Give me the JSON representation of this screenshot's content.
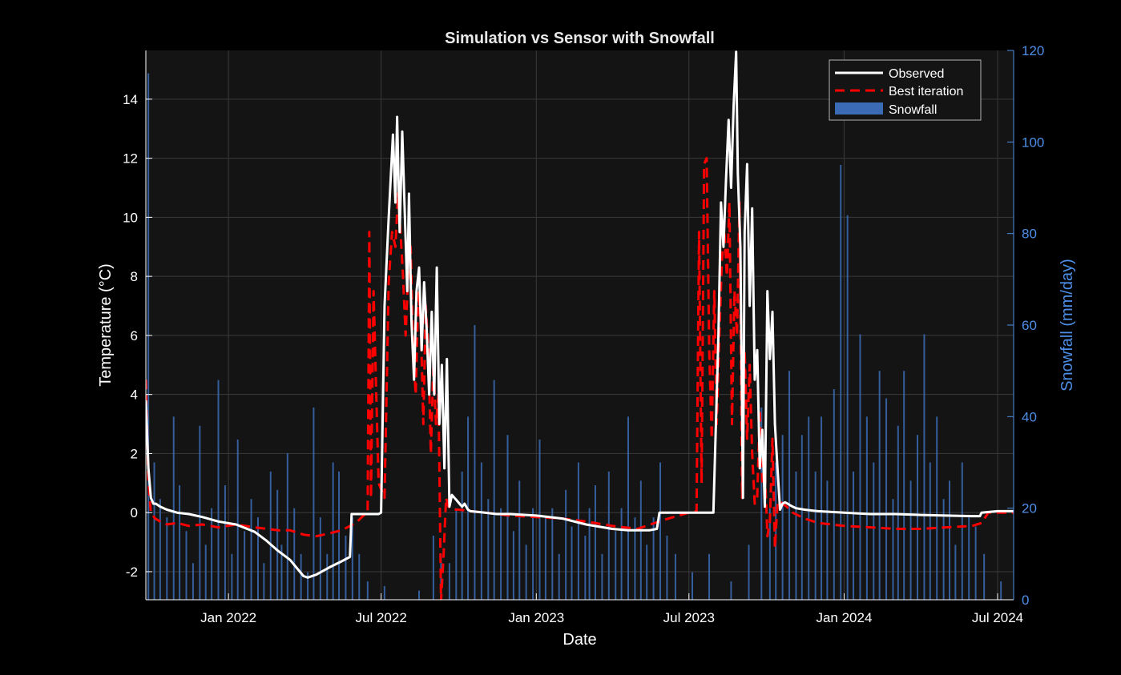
{
  "chart_data": {
    "type": "line",
    "title": "Simulation vs Sensor with Snowfall",
    "xlabel": "Date",
    "ylabel": "Temperature (°C)",
    "ylabel_right": "Snowfall (mm/day)",
    "xlim": [
      "2021-09-25",
      "2024-07-20"
    ],
    "ylim": [
      -2.95,
      15.65
    ],
    "ylim_right": [
      0,
      120
    ],
    "x_ticks": [
      "2022-01-01",
      "2022-07-01",
      "2023-01-01",
      "2023-07-01",
      "2024-01-01",
      "2024-07-01"
    ],
    "x_tick_labels": [
      "Jan 2022",
      "Jul 2022",
      "Jan 2023",
      "Jul 2023",
      "Jan 2024",
      "Jul 2024"
    ],
    "y_ticks": [
      -2,
      0,
      2,
      4,
      6,
      8,
      10,
      12,
      14
    ],
    "y_tick_labels": [
      "-2",
      "0",
      "2",
      "4",
      "6",
      "8",
      "10",
      "12",
      "14"
    ],
    "y_right_ticks": [
      0,
      20,
      40,
      60,
      80,
      100,
      120
    ],
    "y_right_tick_labels": [
      "0",
      "20",
      "40",
      "60",
      "80",
      "100",
      "120"
    ],
    "grid": true,
    "legend_position": "top-right",
    "legend": [
      "Observed",
      "Best iteration",
      "Snowfall"
    ],
    "colors": {
      "background": "#000000",
      "plot_background": "#141414",
      "grid": "#3a3a3a",
      "observed": "#ffffff",
      "best_iteration": "#ff0000",
      "snowfall": "#3a6bb4",
      "right_axis": "#4d8fe8"
    },
    "series": [
      {
        "name": "Observed",
        "style": "solid",
        "x": [
          "2021-09-25",
          "2021-09-28",
          "2021-10-01",
          "2021-10-04",
          "2021-10-07",
          "2021-10-12",
          "2021-10-20",
          "2021-11-01",
          "2021-11-15",
          "2021-12-01",
          "2021-12-20",
          "2022-01-10",
          "2022-02-01",
          "2022-02-15",
          "2022-03-01",
          "2022-03-15",
          "2022-03-31",
          "2022-04-05",
          "2022-04-15",
          "2022-05-01",
          "2022-05-15",
          "2022-05-25",
          "2022-05-27",
          "2022-06-15",
          "2022-06-28",
          "2022-07-01",
          "2022-07-05",
          "2022-07-10",
          "2022-07-15",
          "2022-07-18",
          "2022-07-20",
          "2022-07-23",
          "2022-07-26",
          "2022-07-29",
          "2022-08-01",
          "2022-08-03",
          "2022-08-06",
          "2022-08-09",
          "2022-08-12",
          "2022-08-15",
          "2022-08-18",
          "2022-08-21",
          "2022-08-24",
          "2022-08-27",
          "2022-08-30",
          "2022-09-02",
          "2022-09-05",
          "2022-09-08",
          "2022-09-11",
          "2022-09-14",
          "2022-09-17",
          "2022-09-20",
          "2022-09-23",
          "2022-09-26",
          "2022-09-29",
          "2022-10-02",
          "2022-10-05",
          "2022-10-08",
          "2022-10-12",
          "2022-10-15",
          "2022-11-01",
          "2022-11-15",
          "2022-12-01",
          "2023-01-01",
          "2023-02-01",
          "2023-03-01",
          "2023-04-01",
          "2023-04-20",
          "2023-05-15",
          "2023-05-24",
          "2023-05-27",
          "2023-06-15",
          "2023-07-15",
          "2023-07-30",
          "2023-08-05",
          "2023-08-08",
          "2023-08-11",
          "2023-08-14",
          "2023-08-17",
          "2023-08-20",
          "2023-08-23",
          "2023-08-26",
          "2023-08-28",
          "2023-08-31",
          "2023-09-03",
          "2023-09-05",
          "2023-09-08",
          "2023-09-11",
          "2023-09-14",
          "2023-09-17",
          "2023-09-20",
          "2023-09-23",
          "2023-09-26",
          "2023-09-29",
          "2023-10-02",
          "2023-10-05",
          "2023-10-08",
          "2023-10-11",
          "2023-10-14",
          "2023-10-17",
          "2023-10-20",
          "2023-10-23",
          "2023-10-26",
          "2023-10-29",
          "2023-11-01",
          "2023-11-05",
          "2023-11-15",
          "2023-12-01",
          "2024-01-01",
          "2024-02-01",
          "2024-03-01",
          "2024-04-01",
          "2024-05-01",
          "2024-06-01",
          "2024-06-10",
          "2024-06-12",
          "2024-07-01",
          "2024-07-20"
        ],
        "y": [
          3.8,
          1.5,
          0.5,
          0.3,
          0.3,
          0.2,
          0.1,
          0.0,
          -0.05,
          -0.15,
          -0.3,
          -0.4,
          -0.65,
          -0.95,
          -1.3,
          -1.6,
          -2.15,
          -2.2,
          -2.1,
          -1.85,
          -1.65,
          -1.5,
          -0.05,
          -0.05,
          -0.05,
          0.0,
          7.0,
          10.0,
          12.8,
          10.5,
          13.4,
          9.5,
          12.9,
          10.2,
          7.5,
          10.8,
          6.5,
          4.5,
          7.5,
          8.3,
          5.5,
          7.8,
          6.2,
          4.0,
          6.8,
          4.0,
          8.3,
          3.0,
          5.0,
          1.5,
          5.2,
          0.2,
          0.6,
          0.5,
          0.4,
          0.3,
          0.2,
          0.3,
          0.1,
          0.05,
          0.0,
          -0.05,
          -0.05,
          -0.1,
          -0.2,
          -0.4,
          -0.55,
          -0.6,
          -0.6,
          -0.55,
          0.0,
          0.0,
          0.0,
          0.0,
          6.0,
          10.5,
          9.0,
          11.3,
          13.3,
          11.0,
          13.8,
          15.6,
          11.5,
          9.0,
          0.5,
          9.5,
          11.8,
          7.0,
          10.3,
          4.5,
          5.5,
          1.5,
          2.8,
          0.2,
          7.5,
          5.2,
          6.8,
          3.0,
          1.5,
          0.1,
          0.3,
          0.35,
          0.3,
          0.25,
          0.2,
          0.15,
          0.1,
          0.05,
          0.0,
          -0.05,
          -0.05,
          -0.08,
          -0.1,
          -0.12,
          -0.12,
          0.0,
          0.05,
          0.05
        ]
      },
      {
        "name": "Best iteration",
        "style": "dashed",
        "x": [
          "2021-09-25",
          "2021-09-28",
          "2021-10-01",
          "2021-10-06",
          "2021-10-12",
          "2021-10-20",
          "2021-11-01",
          "2021-11-15",
          "2021-12-01",
          "2021-12-20",
          "2022-01-10",
          "2022-02-01",
          "2022-02-15",
          "2022-03-01",
          "2022-03-15",
          "2022-04-01",
          "2022-04-15",
          "2022-05-01",
          "2022-05-15",
          "2022-06-01",
          "2022-06-10",
          "2022-06-15",
          "2022-06-17",
          "2022-06-19",
          "2022-06-22",
          "2022-06-28",
          "2022-07-05",
          "2022-07-10",
          "2022-07-14",
          "2022-07-18",
          "2022-07-21",
          "2022-07-24",
          "2022-07-27",
          "2022-07-30",
          "2022-08-02",
          "2022-08-05",
          "2022-08-08",
          "2022-08-11",
          "2022-08-14",
          "2022-08-17",
          "2022-08-20",
          "2022-08-23",
          "2022-08-26",
          "2022-08-29",
          "2022-09-01",
          "2022-09-04",
          "2022-09-07",
          "2022-09-10",
          "2022-09-13",
          "2022-09-16",
          "2022-09-19",
          "2022-09-22",
          "2022-09-25",
          "2022-10-01",
          "2022-10-15",
          "2022-11-01",
          "2022-12-01",
          "2023-01-01",
          "2023-02-01",
          "2023-03-01",
          "2023-04-01",
          "2023-05-01",
          "2023-06-01",
          "2023-07-01",
          "2023-07-10",
          "2023-07-13",
          "2023-07-16",
          "2023-07-19",
          "2023-07-22",
          "2023-07-25",
          "2023-07-28",
          "2023-07-31",
          "2023-08-03",
          "2023-08-06",
          "2023-08-09",
          "2023-08-12",
          "2023-08-15",
          "2023-08-18",
          "2023-08-21",
          "2023-08-24",
          "2023-08-27",
          "2023-08-30",
          "2023-09-02",
          "2023-09-05",
          "2023-09-08",
          "2023-09-11",
          "2023-09-14",
          "2023-09-17",
          "2023-09-20",
          "2023-09-23",
          "2023-09-26",
          "2023-09-29",
          "2023-10-02",
          "2023-10-05",
          "2023-10-08",
          "2023-10-11",
          "2023-10-14",
          "2023-10-17",
          "2023-10-20",
          "2023-10-25",
          "2023-11-01",
          "2023-11-15",
          "2023-12-01",
          "2024-01-01",
          "2024-02-01",
          "2024-03-01",
          "2024-04-01",
          "2024-05-01",
          "2024-06-01",
          "2024-06-12",
          "2024-06-20",
          "2024-07-01",
          "2024-07-20"
        ],
        "y": [
          4.5,
          1.0,
          0.0,
          -0.2,
          -0.3,
          -0.4,
          -0.35,
          -0.45,
          -0.4,
          -0.5,
          -0.4,
          -0.5,
          -0.55,
          -0.6,
          -0.6,
          -0.75,
          -0.8,
          -0.7,
          -0.6,
          -0.35,
          -0.1,
          0.0,
          9.5,
          0.5,
          7.5,
          1.0,
          0.5,
          7.8,
          9.5,
          9.0,
          10.8,
          9.5,
          8.0,
          6.0,
          8.0,
          9.0,
          5.5,
          4.0,
          7.5,
          6.5,
          3.0,
          7.0,
          5.5,
          2.0,
          5.0,
          3.0,
          4.0,
          -3.0,
          -1.5,
          0.5,
          0.2,
          0.15,
          0.1,
          0.1,
          0.05,
          0.0,
          -0.1,
          -0.15,
          -0.2,
          -0.3,
          -0.45,
          -0.55,
          -0.25,
          0.0,
          0.05,
          9.5,
          1.0,
          11.8,
          12.0,
          5.5,
          2.5,
          7.5,
          3.0,
          6.0,
          8.5,
          9.5,
          8.0,
          10.5,
          3.0,
          7.5,
          6.0,
          10.5,
          0.5,
          5.5,
          2.5,
          5.0,
          2.0,
          0.3,
          0.5,
          3.5,
          1.0,
          1.5,
          -0.8,
          -0.3,
          2.5,
          -1.2,
          0.3,
          0.4,
          0.3,
          0.2,
          0.0,
          -0.2,
          -0.35,
          -0.45,
          -0.5,
          -0.55,
          -0.55,
          -0.5,
          -0.45,
          -0.35,
          0.0,
          0.0,
          0.0
        ]
      },
      {
        "name": "Snowfall",
        "type": "bar",
        "axis": "right",
        "x": [
          "2021-09-28",
          "2021-10-05",
          "2021-10-12",
          "2021-10-20",
          "2021-10-28",
          "2021-11-04",
          "2021-11-12",
          "2021-11-20",
          "2021-11-28",
          "2021-12-05",
          "2021-12-12",
          "2021-12-20",
          "2021-12-28",
          "2022-01-05",
          "2022-01-12",
          "2022-01-20",
          "2022-01-28",
          "2022-02-05",
          "2022-02-12",
          "2022-02-20",
          "2022-02-28",
          "2022-03-05",
          "2022-03-12",
          "2022-03-20",
          "2022-03-28",
          "2022-04-05",
          "2022-04-12",
          "2022-04-20",
          "2022-04-28",
          "2022-05-05",
          "2022-05-12",
          "2022-05-20",
          "2022-05-28",
          "2022-06-05",
          "2022-06-15",
          "2022-07-05",
          "2022-08-15",
          "2022-09-01",
          "2022-09-10",
          "2022-09-20",
          "2022-09-28",
          "2022-10-05",
          "2022-10-12",
          "2022-10-20",
          "2022-10-28",
          "2022-11-05",
          "2022-11-12",
          "2022-11-20",
          "2022-11-28",
          "2022-12-05",
          "2022-12-12",
          "2022-12-20",
          "2022-12-28",
          "2023-01-05",
          "2023-01-12",
          "2023-01-20",
          "2023-01-28",
          "2023-02-05",
          "2023-02-12",
          "2023-02-20",
          "2023-02-28",
          "2023-03-05",
          "2023-03-12",
          "2023-03-20",
          "2023-03-28",
          "2023-04-05",
          "2023-04-12",
          "2023-04-20",
          "2023-04-28",
          "2023-05-05",
          "2023-05-12",
          "2023-05-20",
          "2023-05-28",
          "2023-06-05",
          "2023-06-15",
          "2023-07-05",
          "2023-07-25",
          "2023-08-20",
          "2023-09-10",
          "2023-09-25",
          "2023-10-05",
          "2023-10-12",
          "2023-10-20",
          "2023-10-28",
          "2023-11-05",
          "2023-11-12",
          "2023-11-20",
          "2023-11-28",
          "2023-12-05",
          "2023-12-12",
          "2023-12-20",
          "2023-12-28",
          "2024-01-05",
          "2024-01-12",
          "2024-01-20",
          "2024-01-28",
          "2024-02-05",
          "2024-02-12",
          "2024-02-20",
          "2024-02-28",
          "2024-03-05",
          "2024-03-12",
          "2024-03-20",
          "2024-03-28",
          "2024-04-05",
          "2024-04-12",
          "2024-04-20",
          "2024-04-28",
          "2024-05-05",
          "2024-05-12",
          "2024-05-20",
          "2024-05-28",
          "2024-06-05",
          "2024-06-15",
          "2024-07-05"
        ],
        "values": [
          115,
          30,
          22,
          18,
          40,
          25,
          15,
          8,
          38,
          12,
          20,
          48,
          25,
          10,
          35,
          15,
          22,
          18,
          8,
          28,
          24,
          12,
          32,
          20,
          10,
          6,
          42,
          18,
          10,
          30,
          28,
          14,
          18,
          10,
          4,
          3,
          2,
          14,
          10,
          8,
          20,
          28,
          40,
          60,
          30,
          22,
          48,
          20,
          36,
          15,
          26,
          12,
          20,
          35,
          18,
          20,
          10,
          24,
          16,
          30,
          14,
          20,
          25,
          10,
          28,
          15,
          20,
          40,
          18,
          26,
          12,
          18,
          30,
          14,
          10,
          6,
          10,
          4,
          12,
          42,
          20,
          30,
          36,
          50,
          28,
          36,
          40,
          28,
          40,
          26,
          46,
          95,
          84,
          28,
          58,
          40,
          30,
          50,
          44,
          22,
          38,
          50,
          26,
          36,
          58,
          30,
          40,
          22,
          26,
          12,
          30,
          18,
          16,
          10,
          4
        ]
      }
    ]
  }
}
